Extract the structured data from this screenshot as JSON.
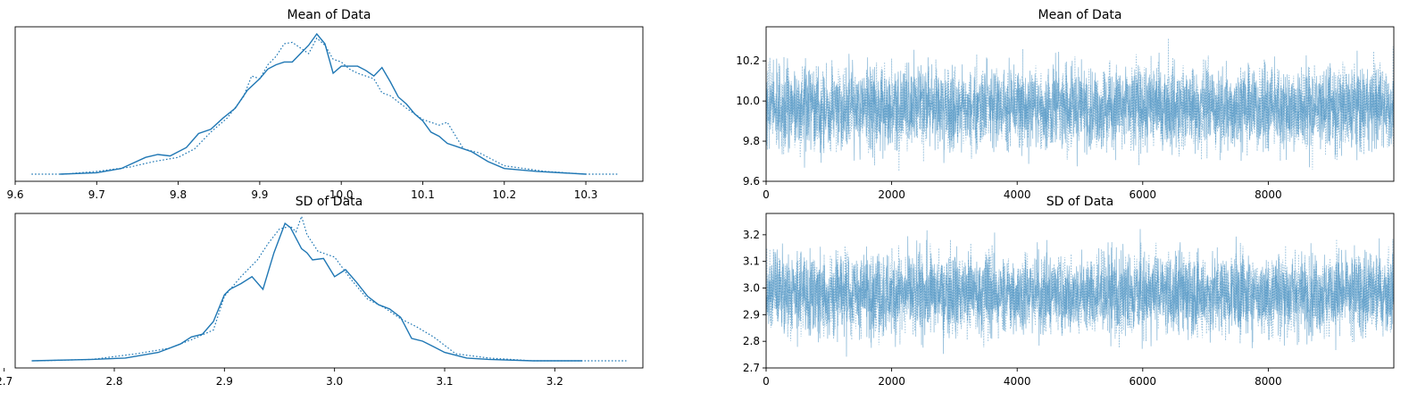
{
  "colors": {
    "line": "#1f77b4",
    "trace": "#1f77b4",
    "axes": "#000000"
  },
  "chart_data": [
    {
      "type": "line",
      "title": "Mean of Data",
      "xlabel": "",
      "ylabel": "",
      "xlim": [
        9.6,
        10.37
      ],
      "xticks": [
        9.6,
        9.7,
        9.8,
        9.9,
        10.0,
        10.1,
        10.2,
        10.3
      ],
      "xtick_labels": [
        "9.6",
        "9.7",
        "9.8",
        "9.9",
        "10.0",
        "10.1",
        "10.2",
        "10.3"
      ],
      "yticks_shown": false,
      "series": [
        {
          "style": "solid",
          "x": [
            9.655,
            9.7,
            9.73,
            9.76,
            9.775,
            9.79,
            9.81,
            9.825,
            9.84,
            9.855,
            9.87,
            9.885,
            9.9,
            9.91,
            9.92,
            9.93,
            9.94,
            9.95,
            9.96,
            9.97,
            9.98,
            9.99,
            10.0,
            10.01,
            10.02,
            10.03,
            10.04,
            10.05,
            10.06,
            10.07,
            10.08,
            10.09,
            10.1,
            10.11,
            10.12,
            10.13,
            10.14,
            10.16,
            10.18,
            10.2,
            10.24,
            10.3
          ],
          "y": [
            0.0,
            0.01,
            0.04,
            0.12,
            0.14,
            0.13,
            0.19,
            0.29,
            0.32,
            0.4,
            0.47,
            0.6,
            0.68,
            0.75,
            0.78,
            0.8,
            0.8,
            0.86,
            0.92,
            1.0,
            0.93,
            0.72,
            0.77,
            0.77,
            0.77,
            0.74,
            0.7,
            0.76,
            0.66,
            0.55,
            0.5,
            0.43,
            0.38,
            0.3,
            0.27,
            0.22,
            0.2,
            0.16,
            0.09,
            0.04,
            0.02,
            0.0
          ]
        },
        {
          "style": "dotted",
          "x": [
            9.62,
            9.66,
            9.7,
            9.74,
            9.77,
            9.8,
            9.82,
            9.84,
            9.86,
            9.88,
            9.89,
            9.9,
            9.91,
            9.92,
            9.93,
            9.94,
            9.95,
            9.96,
            9.97,
            9.98,
            9.99,
            10.0,
            10.01,
            10.02,
            10.03,
            10.04,
            10.05,
            10.06,
            10.08,
            10.1,
            10.12,
            10.13,
            10.15,
            10.17,
            10.2,
            10.25,
            10.3,
            10.34
          ],
          "y": [
            0.0,
            0.0,
            0.02,
            0.05,
            0.09,
            0.12,
            0.18,
            0.3,
            0.4,
            0.55,
            0.7,
            0.68,
            0.78,
            0.84,
            0.93,
            0.94,
            0.9,
            0.86,
            0.97,
            0.92,
            0.82,
            0.8,
            0.75,
            0.72,
            0.7,
            0.68,
            0.58,
            0.56,
            0.47,
            0.39,
            0.35,
            0.37,
            0.18,
            0.15,
            0.06,
            0.02,
            0.0,
            0.0
          ]
        }
      ]
    },
    {
      "type": "line",
      "title": "Mean of Data",
      "xlabel": "",
      "ylabel": "",
      "xlim": [
        0,
        10000
      ],
      "ylim": [
        9.6,
        10.37
      ],
      "xticks": [
        0,
        2000,
        4000,
        6000,
        8000
      ],
      "xtick_labels": [
        "0",
        "2000",
        "4000",
        "6000",
        "8000"
      ],
      "yticks": [
        9.6,
        9.8,
        10.0,
        10.2
      ],
      "ytick_labels": [
        "9.6",
        "9.8",
        "10.0",
        "10.2"
      ],
      "n_draws": 10000,
      "center": 9.97,
      "spread": 0.1,
      "series": [
        {
          "style": "solid"
        },
        {
          "style": "dotted"
        }
      ]
    },
    {
      "type": "line",
      "title": "SD of Data",
      "xlabel": "",
      "ylabel": "",
      "xlim": [
        2.71,
        3.28
      ],
      "xticks": [
        2.7,
        2.8,
        2.9,
        3.0,
        3.1,
        3.2
      ],
      "xtick_labels": [
        "2.7",
        "2.8",
        "2.9",
        "3.0",
        "3.1",
        "3.2"
      ],
      "yticks_shown": false,
      "series": [
        {
          "style": "solid",
          "x": [
            2.725,
            2.78,
            2.81,
            2.84,
            2.86,
            2.87,
            2.88,
            2.89,
            2.9,
            2.905,
            2.915,
            2.925,
            2.935,
            2.945,
            2.955,
            2.96,
            2.97,
            2.975,
            2.98,
            2.99,
            3.0,
            3.01,
            3.02,
            3.03,
            3.04,
            3.05,
            3.06,
            3.07,
            3.08,
            3.09,
            3.1,
            3.12,
            3.14,
            3.18,
            3.225
          ],
          "y": [
            0.0,
            0.01,
            0.02,
            0.06,
            0.12,
            0.17,
            0.19,
            0.28,
            0.47,
            0.51,
            0.55,
            0.6,
            0.51,
            0.77,
            0.98,
            0.95,
            0.8,
            0.77,
            0.72,
            0.73,
            0.6,
            0.65,
            0.56,
            0.46,
            0.4,
            0.37,
            0.31,
            0.16,
            0.14,
            0.1,
            0.06,
            0.02,
            0.01,
            0.0,
            0.0
          ]
        },
        {
          "style": "dotted",
          "x": [
            2.73,
            2.78,
            2.82,
            2.85,
            2.87,
            2.89,
            2.9,
            2.915,
            2.93,
            2.94,
            2.95,
            2.96,
            2.965,
            2.97,
            2.975,
            2.985,
            3.0,
            3.015,
            3.03,
            3.045,
            3.06,
            3.075,
            3.09,
            3.11,
            3.14,
            3.18,
            3.22,
            3.265
          ],
          "y": [
            0.0,
            0.01,
            0.05,
            0.09,
            0.15,
            0.22,
            0.46,
            0.6,
            0.72,
            0.84,
            0.94,
            0.96,
            0.92,
            1.03,
            0.9,
            0.78,
            0.74,
            0.58,
            0.44,
            0.38,
            0.3,
            0.24,
            0.17,
            0.05,
            0.02,
            0.0,
            0.0,
            0.0
          ]
        }
      ]
    },
    {
      "type": "line",
      "title": "SD of Data",
      "xlabel": "",
      "ylabel": "",
      "xlim": [
        0,
        10000
      ],
      "ylim": [
        2.7,
        3.28
      ],
      "xticks": [
        0,
        2000,
        4000,
        6000,
        8000
      ],
      "xtick_labels": [
        "0",
        "2000",
        "4000",
        "6000",
        "8000"
      ],
      "yticks": [
        2.7,
        2.8,
        2.9,
        3.0,
        3.1,
        3.2
      ],
      "ytick_labels": [
        "2.7",
        "2.8",
        "2.9",
        "3.0",
        "3.1",
        "3.2"
      ],
      "n_draws": 10000,
      "center": 2.98,
      "spread": 0.075,
      "series": [
        {
          "style": "solid"
        },
        {
          "style": "dotted"
        }
      ]
    }
  ]
}
